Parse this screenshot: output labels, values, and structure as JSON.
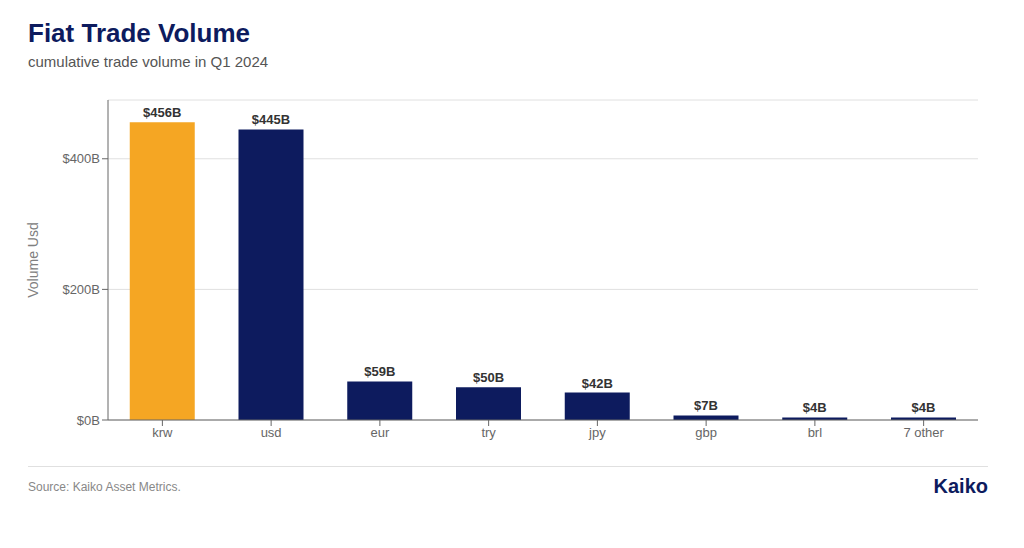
{
  "chart_data": {
    "type": "bar",
    "title": "Fiat Trade Volume",
    "subtitle": "cumulative trade volume in Q1 2024",
    "categories": [
      "krw",
      "usd",
      "eur",
      "try",
      "jpy",
      "gbp",
      "brl",
      "7 other"
    ],
    "values": [
      456,
      445,
      59,
      50,
      42,
      7,
      4,
      4
    ],
    "value_labels": [
      "$456B",
      "$445B",
      "$59B",
      "$50B",
      "$42B",
      "$7B",
      "$4B",
      "$4B"
    ],
    "data_labels": true,
    "colors": [
      "#F5A623",
      "#0D1B5E",
      "#0D1B5E",
      "#0D1B5E",
      "#0D1B5E",
      "#0D1B5E",
      "#0D1B5E",
      "#0D1B5E"
    ],
    "ylabel": "Volume Usd",
    "ylim": [
      0,
      490
    ],
    "yticks": [
      {
        "value": 0,
        "label": "$0B"
      },
      {
        "value": 200,
        "label": "$200B"
      },
      {
        "value": 400,
        "label": "$400B"
      }
    ],
    "grid": true,
    "annotations": [
      "Source: Kaiko Asset Metrics.",
      "Kaiko"
    ]
  }
}
